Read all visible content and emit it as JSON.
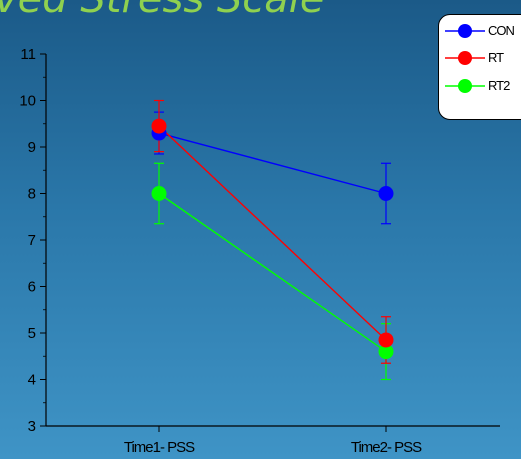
{
  "chart_data": {
    "type": "line",
    "title": "ved Stress Scale",
    "categories": [
      "Time1- PSS",
      "Time2- PSS"
    ],
    "ylim": [
      3,
      11
    ],
    "yticks": [
      3,
      4,
      5,
      6,
      7,
      8,
      9,
      10,
      11
    ],
    "series": [
      {
        "name": "CON",
        "color": "#0000ff",
        "values": [
          9.3,
          8.0
        ],
        "errors": [
          0.45,
          0.65
        ]
      },
      {
        "name": "RT",
        "color": "#ff0000",
        "values": [
          9.45,
          4.85
        ],
        "errors": [
          0.55,
          0.5
        ]
      },
      {
        "name": "RT2",
        "color": "#00ff00",
        "values": [
          8.0,
          4.6
        ],
        "errors": [
          0.65,
          0.6
        ]
      }
    ],
    "legend_position": "top-right",
    "grid": false
  }
}
